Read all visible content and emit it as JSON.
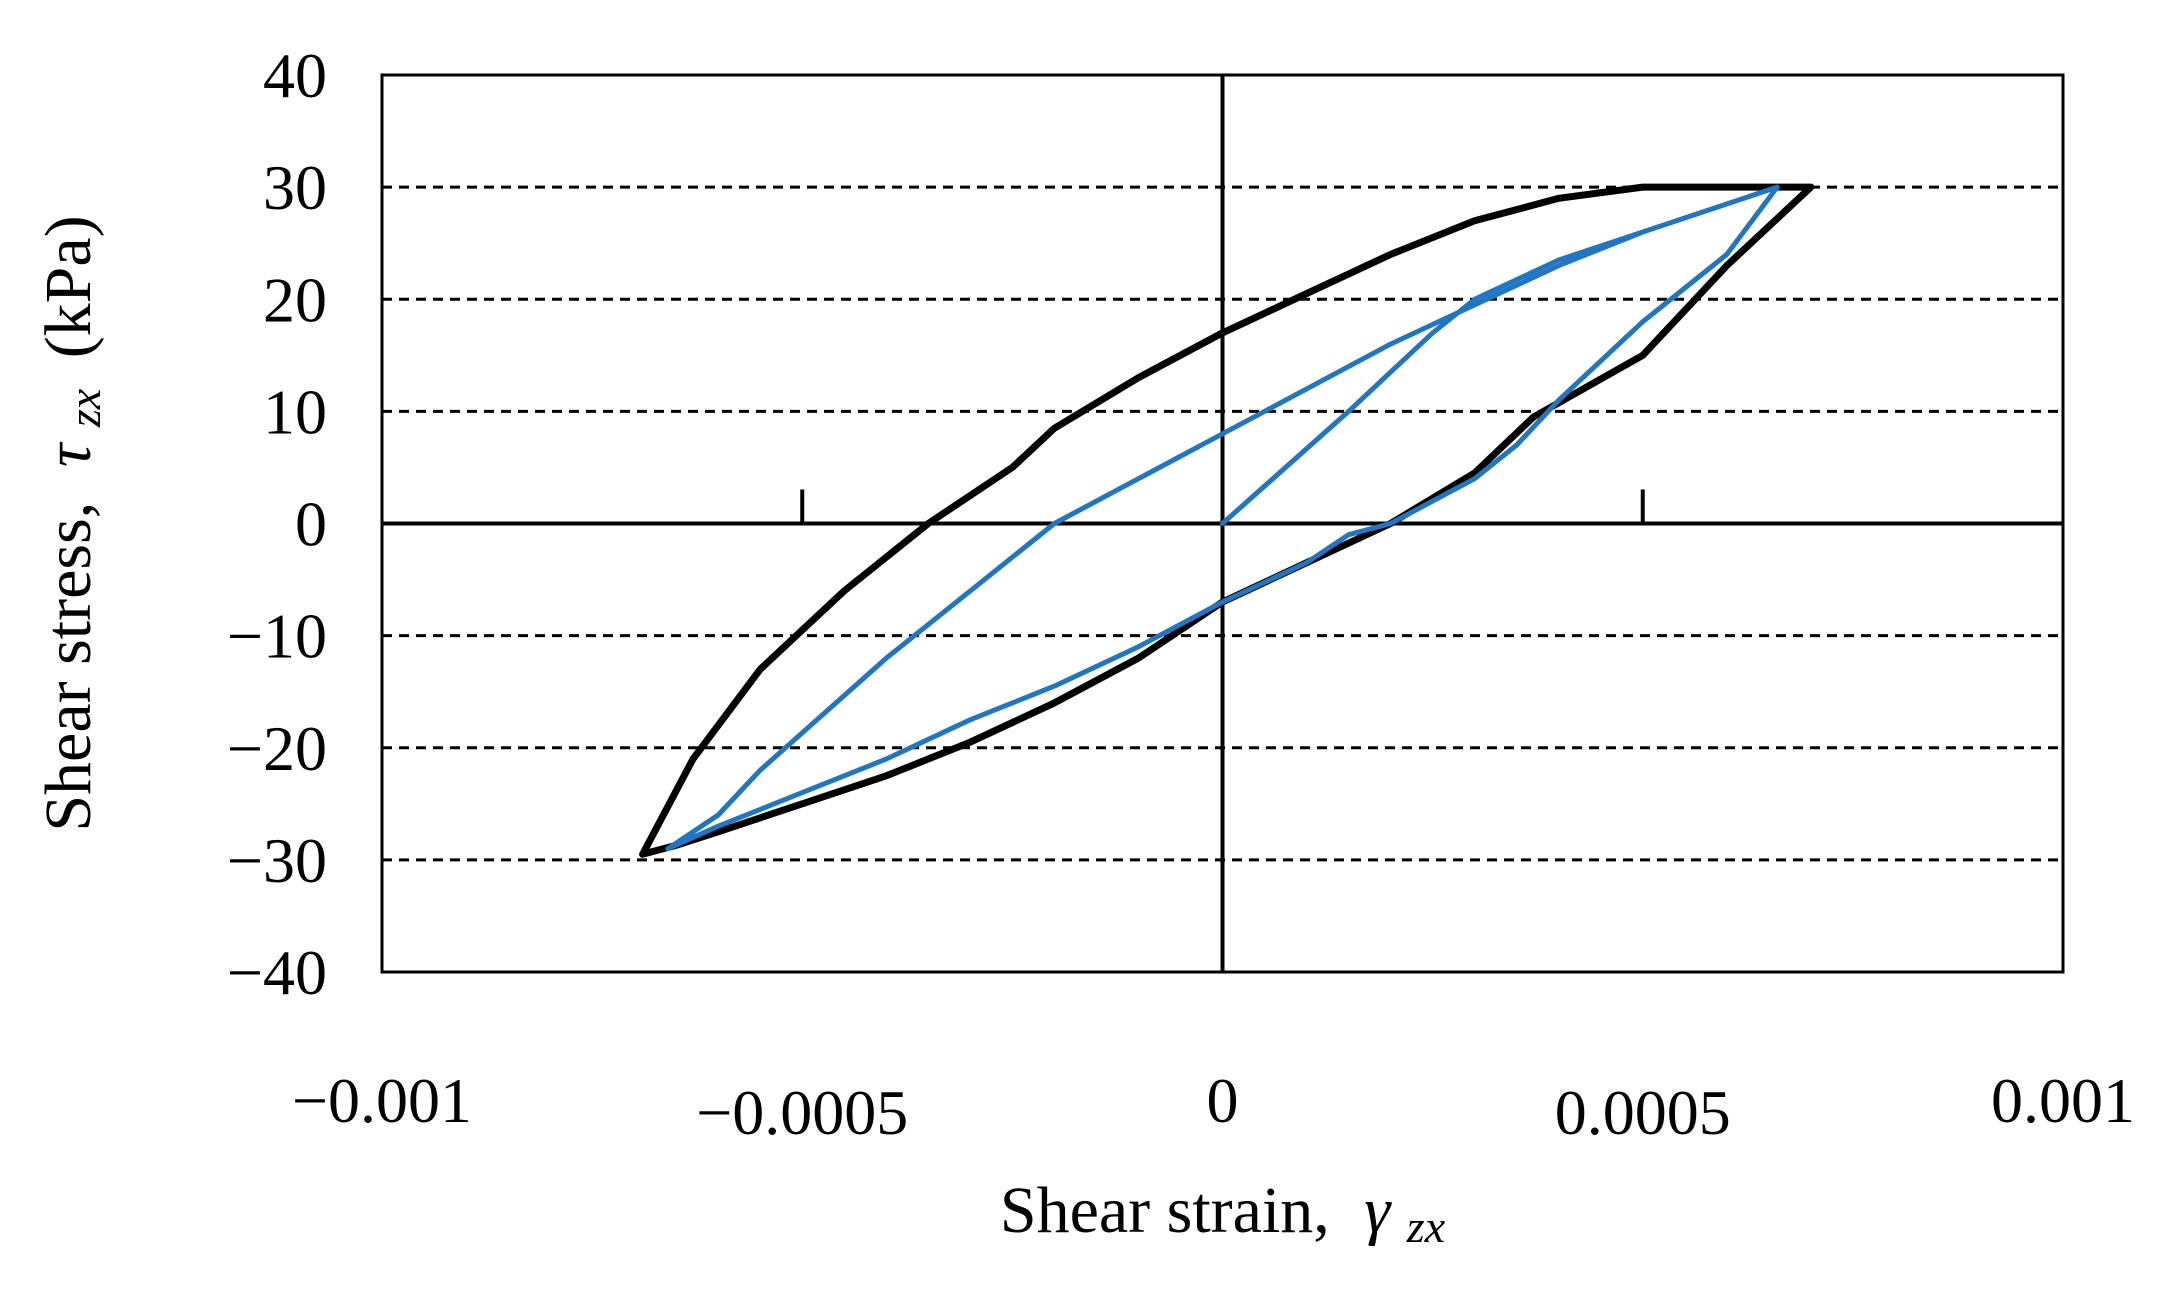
{
  "chart_data": {
    "type": "line",
    "title": "",
    "xlabel": {
      "text": "Shear strain,",
      "symbol": "γ",
      "subscript": "zx"
    },
    "ylabel": {
      "text": "Shear stress,",
      "symbol": "τ",
      "subscript": "zx",
      "unit": "(kPa)"
    },
    "xlim": [
      -0.001,
      0.001
    ],
    "ylim": [
      -40,
      40
    ],
    "x_tick_values": [
      -0.001,
      -0.0005,
      0,
      0.0005,
      0.001
    ],
    "x_tick_labels": [
      "−0.001",
      "−0.0005",
      "0",
      "0.0005",
      "0.001"
    ],
    "y_tick_values": [
      40,
      30,
      20,
      10,
      0,
      -10,
      -20,
      -30,
      -40
    ],
    "y_tick_labels": [
      "40",
      "30",
      "20",
      "10",
      "0",
      "−10",
      "−20",
      "−30",
      "−40"
    ],
    "grid": {
      "horizontal": true,
      "style": "dashed",
      "values": [
        30,
        20,
        10,
        -10,
        -20,
        -30
      ]
    },
    "legend": "none",
    "series": [
      {
        "color": "#000000",
        "x": [
          -0.00069,
          -0.00063,
          -0.00055,
          -0.00045,
          -0.00035,
          -0.00025,
          -0.0002,
          -0.0001,
          0,
          0.0001,
          0.0002,
          0.0003,
          0.0004,
          0.0005,
          0.0006,
          0.00065,
          0.0007,
          0.0006,
          0.0005,
          0.00037,
          0.0003,
          0.0002,
          0.0001,
          0,
          -0.0001,
          -0.0002,
          -0.0003,
          -0.0004,
          -0.0005,
          -0.0006,
          -0.00065,
          -0.00069
        ],
        "y": [
          -29.5,
          -21,
          -13,
          -6,
          0,
          5,
          8.5,
          13,
          17,
          20.5,
          24,
          27,
          29,
          30,
          30,
          30,
          30,
          23,
          15,
          9.5,
          4.5,
          0,
          -3.5,
          -7,
          -12,
          -16,
          -19.5,
          -22.5,
          -25,
          -27.5,
          -28.7,
          -29.5
        ]
      },
      {
        "color": "#1f77c4",
        "x": [
          0,
          0.00015,
          0.0002,
          0.00025,
          0.0003,
          0.0004,
          0.0005,
          0.00066,
          0.0006,
          0.0005,
          0.0004,
          0.00035,
          0.0003,
          0.0002,
          0.00015,
          0.0001,
          0,
          -0.0001,
          -0.0002,
          -0.0003,
          -0.0004,
          -0.0005,
          -0.0006,
          -0.00066,
          -0.0006,
          -0.00055,
          -0.0004,
          -0.0003,
          -0.0002,
          -0.0001,
          0,
          0.0001,
          0.0002,
          0.0003,
          0.0004,
          0.0005,
          0.00066
        ],
        "y": [
          0,
          10,
          13.5,
          17,
          20,
          23.5,
          26,
          30,
          24,
          18,
          11,
          7,
          4,
          0,
          -1,
          -3.5,
          -7,
          -11,
          -14.5,
          -17.5,
          -21,
          -24,
          -27,
          -29,
          -26,
          -22,
          -12,
          -6,
          0,
          4,
          8,
          12,
          16,
          19.5,
          23,
          26,
          30
        ]
      }
    ]
  }
}
